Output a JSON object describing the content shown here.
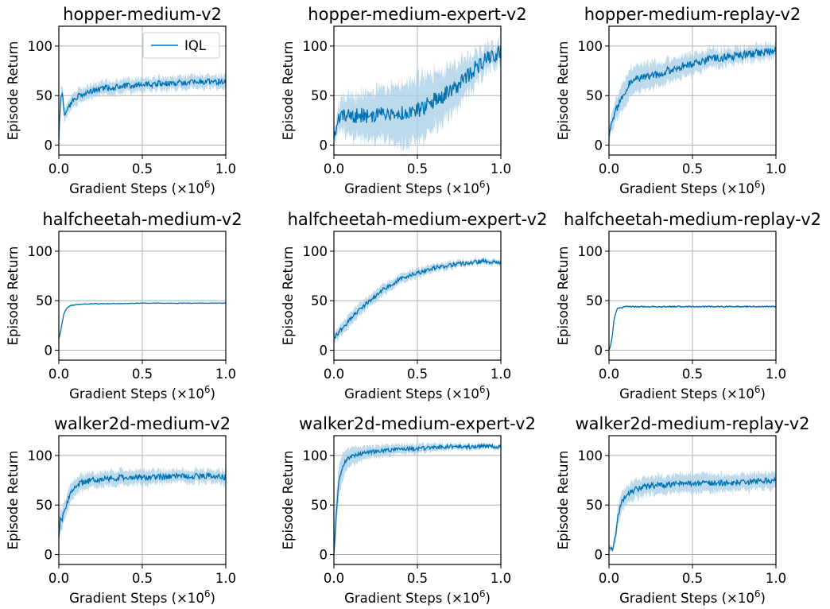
{
  "colors": {
    "line": "#0072b2",
    "band": "#a6cde6",
    "grid": "#b0b0b0",
    "axis": "#000000"
  },
  "chart_data": [
    {
      "type": "line",
      "title": "hopper-medium-v2",
      "xlabel_text": "Gradient Steps (×10",
      "xlabel_exp": "6",
      "xlabel_close": ")",
      "ylabel": "Episode Return",
      "xlim": [
        0,
        1
      ],
      "ylim": [
        -10,
        120
      ],
      "xticks": [
        0,
        0.5,
        1
      ],
      "xtick_labels": [
        "0.0",
        "0.5",
        "1.0"
      ],
      "yticks": [
        0,
        50,
        100
      ],
      "ytick_labels": [
        "0",
        "50",
        "100"
      ],
      "grid": true,
      "legend": {
        "entries": [
          "IQL"
        ],
        "position": "upper-right"
      },
      "series": [
        {
          "name": "IQL",
          "x": [
            0,
            0.01,
            0.02,
            0.03,
            0.04,
            0.06,
            0.08,
            0.1,
            0.15,
            0.2,
            0.3,
            0.4,
            0.5,
            0.6,
            0.7,
            0.8,
            0.9,
            1.0
          ],
          "y": [
            5,
            45,
            54,
            35,
            30,
            38,
            43,
            48,
            52,
            55,
            58,
            60,
            61,
            62,
            63,
            64,
            64,
            64
          ],
          "band": [
            0,
            10,
            8,
            8,
            7,
            7,
            7,
            7,
            7,
            7,
            7,
            7,
            7,
            7,
            7,
            7,
            7,
            7
          ],
          "noise": 3,
          "seed": 1
        }
      ]
    },
    {
      "type": "line",
      "title": "hopper-medium-expert-v2",
      "xlabel_text": "Gradient Steps (×10",
      "xlabel_exp": "6",
      "xlabel_close": ")",
      "ylabel": "Episode Return",
      "xlim": [
        0,
        1
      ],
      "ylim": [
        -10,
        120
      ],
      "xticks": [
        0,
        0.5,
        1
      ],
      "xtick_labels": [
        "0.0",
        "0.5",
        "1.0"
      ],
      "yticks": [
        0,
        50,
        100
      ],
      "ytick_labels": [
        "0",
        "50",
        "100"
      ],
      "grid": true,
      "series": [
        {
          "name": "IQL",
          "x": [
            0,
            0.02,
            0.05,
            0.1,
            0.2,
            0.3,
            0.4,
            0.5,
            0.55,
            0.6,
            0.65,
            0.7,
            0.75,
            0.8,
            0.85,
            0.9,
            0.95,
            1.0
          ],
          "y": [
            5,
            22,
            28,
            30,
            30,
            32,
            33,
            35,
            40,
            45,
            50,
            55,
            62,
            70,
            78,
            85,
            90,
            95
          ],
          "band": [
            5,
            12,
            18,
            22,
            25,
            28,
            32,
            35,
            35,
            30,
            28,
            25,
            22,
            20,
            18,
            15,
            12,
            10
          ],
          "noise": 8,
          "seed": 2
        }
      ]
    },
    {
      "type": "line",
      "title": "hopper-medium-replay-v2",
      "xlabel_text": "Gradient Steps (×10",
      "xlabel_exp": "6",
      "xlabel_close": ")",
      "ylabel": "Episode Return",
      "xlim": [
        0,
        1
      ],
      "ylim": [
        -10,
        120
      ],
      "xticks": [
        0,
        0.5,
        1
      ],
      "xtick_labels": [
        "0.0",
        "0.5",
        "1.0"
      ],
      "yticks": [
        0,
        50,
        100
      ],
      "ytick_labels": [
        "0",
        "50",
        "100"
      ],
      "grid": true,
      "series": [
        {
          "name": "IQL",
          "x": [
            0,
            0.02,
            0.05,
            0.08,
            0.1,
            0.12,
            0.15,
            0.2,
            0.25,
            0.3,
            0.35,
            0.4,
            0.5,
            0.6,
            0.7,
            0.8,
            0.9,
            1.0
          ],
          "y": [
            8,
            25,
            38,
            50,
            55,
            62,
            65,
            68,
            70,
            72,
            75,
            78,
            82,
            86,
            89,
            91,
            93,
            95
          ],
          "band": [
            6,
            10,
            12,
            14,
            15,
            15,
            15,
            14,
            14,
            13,
            12,
            12,
            11,
            10,
            9,
            8,
            8,
            7
          ],
          "noise": 4,
          "seed": 3
        }
      ]
    },
    {
      "type": "line",
      "title": "halfcheetah-medium-v2",
      "xlabel_text": "Gradient Steps (×10",
      "xlabel_exp": "6",
      "xlabel_close": ")",
      "ylabel": "Episode Return",
      "xlim": [
        0,
        1
      ],
      "ylim": [
        -10,
        120
      ],
      "xticks": [
        0,
        0.5,
        1
      ],
      "xtick_labels": [
        "0.0",
        "0.5",
        "1.0"
      ],
      "yticks": [
        0,
        50,
        100
      ],
      "ytick_labels": [
        "0",
        "50",
        "100"
      ],
      "grid": true,
      "series": [
        {
          "name": "IQL",
          "x": [
            0,
            0.01,
            0.02,
            0.03,
            0.05,
            0.07,
            0.1,
            0.15,
            0.2,
            0.3,
            0.5,
            0.7,
            1.0
          ],
          "y": [
            12,
            18,
            28,
            37,
            43,
            45,
            46,
            46.5,
            47,
            47,
            47.5,
            47.5,
            47.5
          ],
          "band": [
            3,
            3,
            2,
            1.5,
            1,
            1,
            0.8,
            0.6,
            0.5,
            0.5,
            0.5,
            0.5,
            0.5
          ],
          "noise": 0.3,
          "seed": 4
        }
      ]
    },
    {
      "type": "line",
      "title": "halfcheetah-medium-expert-v2",
      "xlabel_text": "Gradient Steps (×10",
      "xlabel_exp": "6",
      "xlabel_close": ")",
      "ylabel": "Episode Return",
      "xlim": [
        0,
        1
      ],
      "ylim": [
        -10,
        120
      ],
      "xticks": [
        0,
        0.5,
        1
      ],
      "xtick_labels": [
        "0.0",
        "0.5",
        "1.0"
      ],
      "yticks": [
        0,
        50,
        100
      ],
      "ytick_labels": [
        "0",
        "50",
        "100"
      ],
      "grid": true,
      "series": [
        {
          "name": "IQL",
          "x": [
            0,
            0.05,
            0.1,
            0.15,
            0.2,
            0.25,
            0.3,
            0.35,
            0.4,
            0.5,
            0.6,
            0.7,
            0.8,
            0.9,
            1.0
          ],
          "y": [
            12,
            22,
            32,
            40,
            48,
            55,
            62,
            67,
            72,
            78,
            83,
            86,
            88,
            90,
            88
          ],
          "band": [
            5,
            7,
            7,
            7,
            6,
            6,
            6,
            5,
            5,
            5,
            4,
            4,
            3,
            3,
            3
          ],
          "noise": 2,
          "seed": 5
        }
      ]
    },
    {
      "type": "line",
      "title": "halfcheetah-medium-replay-v2",
      "xlabel_text": "Gradient Steps (×10",
      "xlabel_exp": "6",
      "xlabel_close": ")",
      "ylabel": "Episode Return",
      "xlim": [
        0,
        1
      ],
      "ylim": [
        -10,
        120
      ],
      "xticks": [
        0,
        0.5,
        1
      ],
      "xtick_labels": [
        "0.0",
        "0.5",
        "1.0"
      ],
      "yticks": [
        0,
        50,
        100
      ],
      "ytick_labels": [
        "0",
        "50",
        "100"
      ],
      "grid": true,
      "series": [
        {
          "name": "IQL",
          "x": [
            0,
            0.01,
            0.02,
            0.03,
            0.04,
            0.05,
            0.07,
            0.1,
            0.15,
            0.2,
            0.3,
            0.5,
            0.7,
            1.0
          ],
          "y": [
            0,
            5,
            15,
            30,
            38,
            42,
            43,
            44,
            44,
            44,
            44,
            44,
            44,
            44
          ],
          "band": [
            2,
            3,
            3,
            2,
            1.5,
            1,
            1,
            1,
            1,
            1,
            1,
            1,
            1,
            1
          ],
          "noise": 0.6,
          "seed": 6
        }
      ]
    },
    {
      "type": "line",
      "title": "walker2d-medium-v2",
      "xlabel_text": "Gradient Steps (×10",
      "xlabel_exp": "6",
      "xlabel_close": ")",
      "ylabel": "Episode Return",
      "xlim": [
        0,
        1
      ],
      "ylim": [
        -10,
        120
      ],
      "xticks": [
        0,
        0.5,
        1
      ],
      "xtick_labels": [
        "0.0",
        "0.5",
        "1.0"
      ],
      "yticks": [
        0,
        50,
        100
      ],
      "ytick_labels": [
        "0",
        "50",
        "100"
      ],
      "grid": true,
      "series": [
        {
          "name": "IQL",
          "x": [
            0,
            0.01,
            0.02,
            0.03,
            0.05,
            0.07,
            0.1,
            0.15,
            0.2,
            0.3,
            0.4,
            0.5,
            0.6,
            0.7,
            0.8,
            0.9,
            1.0
          ],
          "y": [
            15,
            40,
            35,
            45,
            52,
            62,
            70,
            73,
            75,
            77,
            78,
            78,
            78,
            79,
            79,
            79,
            78
          ],
          "band": [
            8,
            12,
            12,
            10,
            10,
            10,
            9,
            9,
            8,
            8,
            8,
            8,
            7,
            7,
            7,
            7,
            7
          ],
          "noise": 3,
          "seed": 7
        }
      ]
    },
    {
      "type": "line",
      "title": "walker2d-medium-expert-v2",
      "xlabel_text": "Gradient Steps (×10",
      "xlabel_exp": "6",
      "xlabel_close": ")",
      "ylabel": "Episode Return",
      "xlim": [
        0,
        1
      ],
      "ylim": [
        -10,
        120
      ],
      "xticks": [
        0,
        0.5,
        1
      ],
      "xtick_labels": [
        "0.0",
        "0.5",
        "1.0"
      ],
      "yticks": [
        0,
        50,
        100
      ],
      "ytick_labels": [
        "0",
        "50",
        "100"
      ],
      "grid": true,
      "series": [
        {
          "name": "IQL",
          "x": [
            0,
            0.01,
            0.02,
            0.03,
            0.05,
            0.07,
            0.1,
            0.15,
            0.2,
            0.3,
            0.4,
            0.5,
            0.6,
            0.7,
            0.8,
            0.9,
            1.0
          ],
          "y": [
            0,
            30,
            55,
            75,
            88,
            95,
            99,
            101,
            103,
            105,
            106,
            107,
            108,
            109,
            109,
            109,
            109
          ],
          "band": [
            10,
            20,
            20,
            18,
            15,
            12,
            10,
            8,
            7,
            6,
            5,
            5,
            4,
            3,
            3,
            3,
            2
          ],
          "noise": 2,
          "seed": 8
        }
      ]
    },
    {
      "type": "line",
      "title": "walker2d-medium-replay-v2",
      "xlabel_text": "Gradient Steps (×10",
      "xlabel_exp": "6",
      "xlabel_close": ")",
      "ylabel": "Episode Return",
      "xlim": [
        0,
        1
      ],
      "ylim": [
        -10,
        120
      ],
      "xticks": [
        0,
        0.5,
        1
      ],
      "xtick_labels": [
        "0.0",
        "0.5",
        "1.0"
      ],
      "yticks": [
        0,
        50,
        100
      ],
      "ytick_labels": [
        "0",
        "50",
        "100"
      ],
      "grid": true,
      "series": [
        {
          "name": "IQL",
          "x": [
            0,
            0.01,
            0.02,
            0.03,
            0.04,
            0.05,
            0.07,
            0.1,
            0.15,
            0.2,
            0.3,
            0.4,
            0.5,
            0.6,
            0.7,
            0.8,
            0.9,
            1.0
          ],
          "y": [
            10,
            8,
            6,
            10,
            20,
            35,
            50,
            60,
            65,
            68,
            70,
            71,
            72,
            72,
            72,
            73,
            74,
            75
          ],
          "band": [
            3,
            3,
            3,
            5,
            8,
            10,
            10,
            10,
            10,
            10,
            10,
            10,
            10,
            10,
            9,
            9,
            9,
            9
          ],
          "noise": 3,
          "seed": 9
        }
      ]
    }
  ]
}
